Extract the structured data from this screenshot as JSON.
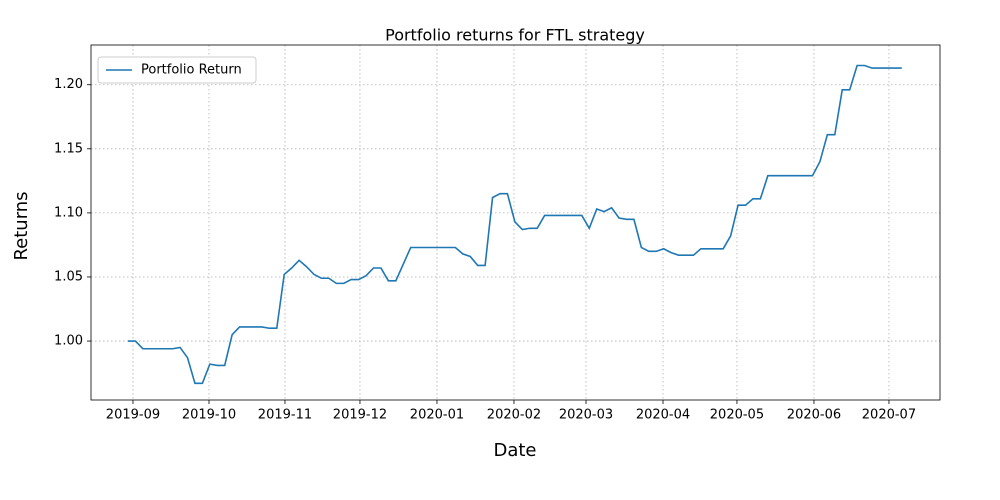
{
  "chart_data": {
    "type": "line",
    "title": "Portfolio returns for FTL strategy",
    "xlabel": "Date",
    "ylabel": "Returns",
    "legend": "upper left",
    "grid": true,
    "xlim": [
      -4.97,
      109.14
    ],
    "xticks": [
      {
        "value": 0.67,
        "label": "2019-09"
      },
      {
        "value": 10.89,
        "label": "2019-10"
      },
      {
        "value": 21.1,
        "label": "2019-11"
      },
      {
        "value": 31.18,
        "label": "2019-12"
      },
      {
        "value": 41.53,
        "label": "2020-01"
      },
      {
        "value": 51.88,
        "label": "2020-02"
      },
      {
        "value": 61.56,
        "label": "2020-03"
      },
      {
        "value": 71.91,
        "label": "2020-04"
      },
      {
        "value": 81.85,
        "label": "2020-05"
      },
      {
        "value": 92.2,
        "label": "2020-06"
      },
      {
        "value": 102.28,
        "label": "2020-07"
      }
    ],
    "ylim": [
      0.954,
      1.231
    ],
    "yticks": [
      {
        "value": 1.0,
        "label": "1.00"
      },
      {
        "value": 1.05,
        "label": "1.05"
      },
      {
        "value": 1.1,
        "label": "1.10"
      },
      {
        "value": 1.15,
        "label": "1.15"
      },
      {
        "value": 1.2,
        "label": "1.20"
      }
    ],
    "series": [
      {
        "name": "Portfolio Return",
        "color": "#1f77b4",
        "values": [
          1.0,
          1.0,
          0.994,
          0.994,
          0.994,
          0.994,
          0.994,
          0.995,
          0.987,
          0.967,
          0.967,
          0.982,
          0.981,
          0.981,
          1.005,
          1.011,
          1.011,
          1.011,
          1.011,
          1.01,
          1.01,
          1.052,
          1.057,
          1.063,
          1.058,
          1.052,
          1.049,
          1.049,
          1.045,
          1.045,
          1.048,
          1.048,
          1.051,
          1.057,
          1.057,
          1.047,
          1.047,
          1.06,
          1.073,
          1.073,
          1.073,
          1.073,
          1.073,
          1.073,
          1.073,
          1.068,
          1.066,
          1.059,
          1.059,
          1.112,
          1.115,
          1.115,
          1.093,
          1.087,
          1.088,
          1.088,
          1.098,
          1.098,
          1.098,
          1.098,
          1.098,
          1.098,
          1.088,
          1.103,
          1.101,
          1.104,
          1.096,
          1.095,
          1.095,
          1.073,
          1.07,
          1.07,
          1.072,
          1.069,
          1.067,
          1.067,
          1.067,
          1.072,
          1.072,
          1.072,
          1.072,
          1.082,
          1.106,
          1.106,
          1.111,
          1.111,
          1.129,
          1.129,
          1.129,
          1.129,
          1.129,
          1.129,
          1.129,
          1.14,
          1.161,
          1.161,
          1.196,
          1.196,
          1.215,
          1.215,
          1.213,
          1.213,
          1.213,
          1.213,
          1.213
        ]
      }
    ]
  }
}
